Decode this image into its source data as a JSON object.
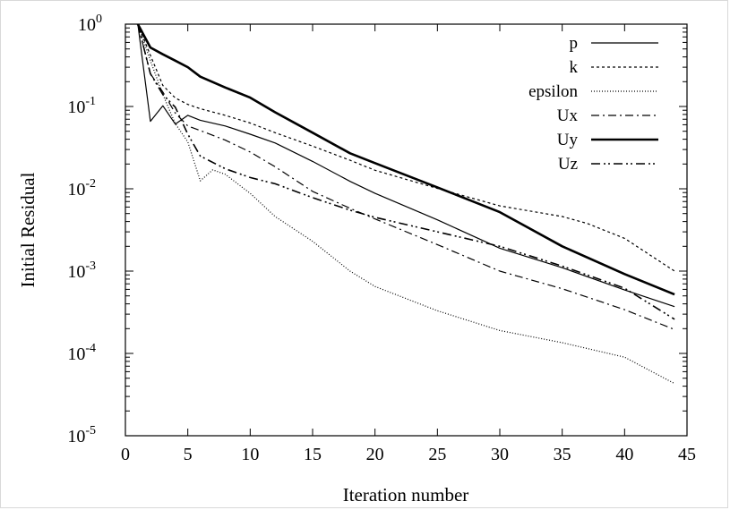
{
  "chart_data": {
    "type": "line",
    "title": "",
    "xlabel": "Iteration number",
    "ylabel": "Initial Residual",
    "xlim": [
      0,
      45
    ],
    "ylim": [
      1e-05,
      1
    ],
    "yscale": "log",
    "x_ticks": [
      "0",
      "5",
      "10",
      "15",
      "20",
      "25",
      "30",
      "35",
      "40",
      "45"
    ],
    "y_ticks": [
      {
        "base": "10",
        "exp": "0"
      },
      {
        "base": "10",
        "exp": "-1"
      },
      {
        "base": "10",
        "exp": "-2"
      },
      {
        "base": "10",
        "exp": "-3"
      },
      {
        "base": "10",
        "exp": "-4"
      },
      {
        "base": "10",
        "exp": "-5"
      }
    ],
    "grid": false,
    "legend_position": "top-right",
    "series": [
      {
        "name": "p",
        "style": "solid-thin",
        "x": [
          1,
          2,
          3,
          4,
          5,
          6,
          8,
          10,
          12,
          15,
          18,
          20,
          25,
          30,
          35,
          40,
          44
        ],
        "y": [
          1.0,
          0.066,
          0.102,
          0.061,
          0.078,
          0.068,
          0.058,
          0.046,
          0.036,
          0.0215,
          0.0123,
          0.0088,
          0.0042,
          0.0019,
          0.0011,
          0.00059,
          0.00037
        ]
      },
      {
        "name": "k",
        "style": "dashed",
        "x": [
          1,
          2,
          3,
          4,
          5,
          6,
          8,
          10,
          12,
          15,
          18,
          20,
          25,
          30,
          35,
          37,
          40,
          44
        ],
        "y": [
          1.0,
          0.42,
          0.18,
          0.127,
          0.106,
          0.094,
          0.078,
          0.063,
          0.048,
          0.033,
          0.0222,
          0.0168,
          0.0101,
          0.0062,
          0.0046,
          0.0038,
          0.0025,
          0.001
        ]
      },
      {
        "name": "epsilon",
        "style": "dotted",
        "x": [
          1,
          2,
          3,
          4,
          5,
          6,
          7,
          8,
          10,
          12,
          15,
          18,
          20,
          25,
          30,
          35,
          40,
          44
        ],
        "y": [
          1.0,
          0.36,
          0.14,
          0.062,
          0.037,
          0.0125,
          0.017,
          0.015,
          0.0088,
          0.0046,
          0.0023,
          0.001,
          0.00065,
          0.00033,
          0.00019,
          0.000135,
          9e-05,
          4.3e-05
        ]
      },
      {
        "name": "Ux",
        "style": "dash-dot",
        "x": [
          1,
          2,
          3,
          4,
          5,
          6,
          8,
          10,
          12,
          15,
          18,
          20,
          25,
          30,
          35,
          40,
          44
        ],
        "y": [
          1.0,
          0.25,
          0.15,
          0.083,
          0.058,
          0.051,
          0.039,
          0.028,
          0.0185,
          0.0093,
          0.0058,
          0.0043,
          0.0021,
          0.001,
          0.00061,
          0.00034,
          0.000195
        ]
      },
      {
        "name": "Uy",
        "style": "solid-thick",
        "x": [
          1,
          2,
          3,
          4,
          5,
          6,
          8,
          10,
          12,
          15,
          18,
          20,
          25,
          30,
          35,
          40,
          44
        ],
        "y": [
          1.0,
          0.52,
          0.43,
          0.36,
          0.3,
          0.23,
          0.17,
          0.128,
          0.085,
          0.048,
          0.027,
          0.0205,
          0.0104,
          0.0052,
          0.002,
          0.00092,
          0.00052
        ]
      },
      {
        "name": "Uz",
        "style": "dash-dot-dot",
        "x": [
          1,
          2,
          3,
          4,
          5,
          6,
          8,
          10,
          12,
          15,
          18,
          20,
          25,
          30,
          35,
          40,
          44
        ],
        "y": [
          1.0,
          0.25,
          0.14,
          0.098,
          0.046,
          0.025,
          0.0175,
          0.0137,
          0.0115,
          0.0078,
          0.0055,
          0.0045,
          0.003,
          0.002,
          0.00115,
          0.00062,
          0.00026
        ]
      }
    ]
  }
}
